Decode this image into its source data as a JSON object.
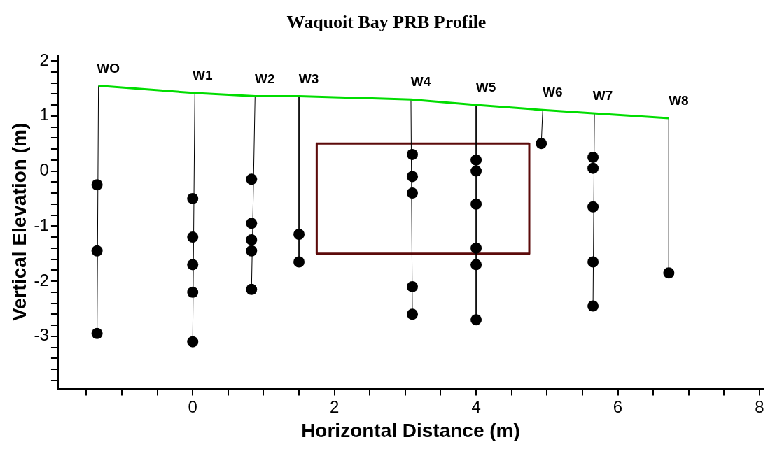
{
  "chart_data": {
    "type": "scatter",
    "title": "Waquoit Bay PRB Profile",
    "xlabel": "Horizontal Distance (m)",
    "ylabel": "Vertical Elevation (m)",
    "xlim": [
      -1.9,
      8.05
    ],
    "ylim": [
      -3.95,
      2.1
    ],
    "xticks": [
      {
        "value": -1.5,
        "label": null
      },
      {
        "value": -1,
        "label": null
      },
      {
        "value": -0.5,
        "label": null
      },
      0,
      {
        "value": 0.5,
        "label": null
      },
      {
        "value": 1,
        "label": null
      },
      {
        "value": 1.5,
        "label": null
      },
      2,
      {
        "value": 2.5,
        "label": null
      },
      {
        "value": 3,
        "label": null
      },
      {
        "value": 3.5,
        "label": null
      },
      4,
      {
        "value": 4.5,
        "label": null
      },
      {
        "value": 5,
        "label": null
      },
      {
        "value": 5.5,
        "label": null
      },
      6,
      {
        "value": 6.5,
        "label": null
      },
      {
        "value": 7,
        "label": null
      },
      {
        "value": 7.5,
        "label": null
      },
      8
    ],
    "yticks": [
      {
        "value": -3.8,
        "label": null
      },
      {
        "value": -3.6,
        "label": null
      },
      {
        "value": -3.4,
        "label": null
      },
      {
        "value": -3.2,
        "label": null
      },
      -3,
      {
        "value": -2.8,
        "label": null
      },
      {
        "value": -2.6,
        "label": null
      },
      {
        "value": -2.4,
        "label": null
      },
      {
        "value": -2.2,
        "label": null
      },
      -2,
      {
        "value": -1.8,
        "label": null
      },
      {
        "value": -1.6,
        "label": null
      },
      {
        "value": -1.4,
        "label": null
      },
      {
        "value": -1.2,
        "label": null
      },
      -1,
      {
        "value": -0.8,
        "label": null
      },
      {
        "value": -0.6,
        "label": null
      },
      {
        "value": -0.4,
        "label": null
      },
      {
        "value": -0.2,
        "label": null
      },
      0,
      {
        "value": 0.2,
        "label": null
      },
      {
        "value": 0.4,
        "label": null
      },
      {
        "value": 0.6,
        "label": null
      },
      {
        "value": 0.8,
        "label": null
      },
      1,
      {
        "value": 1.2,
        "label": null
      },
      {
        "value": 1.4,
        "label": null
      },
      {
        "value": 1.6,
        "label": null
      },
      {
        "value": 1.8,
        "label": null
      },
      2
    ],
    "grid": false,
    "legend": false,
    "series": [
      {
        "marker": "circle",
        "color": "#000000",
        "x": [
          -1.35,
          -1.35,
          -1.35,
          0,
          0,
          0,
          0,
          0,
          0.83,
          0.83,
          0.83,
          0.83,
          0.83,
          1.5,
          1.5,
          3.1,
          3.1,
          3.1,
          3.1,
          3.1,
          4,
          4,
          4,
          4,
          4,
          4,
          4.92,
          5.65,
          5.65,
          5.65,
          5.65,
          5.65,
          6.72
        ],
        "values": [
          -0.25,
          -1.45,
          -2.95,
          -0.5,
          -1.2,
          -1.7,
          -2.2,
          -3.1,
          -0.15,
          -0.95,
          -1.25,
          -1.45,
          -2.15,
          -1.15,
          -1.65,
          0.3,
          -0.1,
          -0.4,
          -2.1,
          -2.6,
          0.2,
          0,
          -0.6,
          -1.4,
          -1.7,
          -2.7,
          0.5,
          0.25,
          0.05,
          -0.65,
          -1.65,
          -2.45,
          -1.85
        ]
      },
      {
        "type": "line",
        "marker": "none",
        "color": "#00dd00",
        "x": [
          -1.33,
          0,
          0.88,
          1.5,
          3.08,
          4,
          4.94,
          5.65,
          6.72
        ],
        "values": [
          1.55,
          1.42,
          1.36,
          1.36,
          1.3,
          1.2,
          1.11,
          1.05,
          0.96
        ]
      },
      {
        "type": "line",
        "marker": "none",
        "color": "#000000",
        "x": [
          -1.33,
          -1.35
        ],
        "values": [
          1.55,
          -2.95
        ]
      },
      {
        "type": "line",
        "marker": "none",
        "color": "#000000",
        "x": [
          0.03,
          0
        ],
        "values": [
          1.42,
          -3.1
        ]
      },
      {
        "type": "line",
        "marker": "none",
        "color": "#000000",
        "x": [
          0.88,
          0.83
        ],
        "values": [
          1.36,
          -2.15
        ]
      },
      {
        "type": "line",
        "marker": "none",
        "color": "#000000",
        "x": [
          1.5,
          1.5
        ],
        "values": [
          1.36,
          -1.65
        ]
      },
      {
        "type": "line",
        "marker": "none",
        "color": "#000000",
        "x": [
          3.08,
          3.1
        ],
        "values": [
          1.3,
          -2.6
        ]
      },
      {
        "type": "line",
        "marker": "none",
        "color": "#000000",
        "x": [
          4,
          4
        ],
        "values": [
          1.2,
          -2.7
        ]
      },
      {
        "type": "line",
        "marker": "none",
        "color": "#000000",
        "x": [
          4.94,
          4.92
        ],
        "values": [
          1.11,
          0.5
        ]
      },
      {
        "type": "line",
        "marker": "none",
        "color": "#000000",
        "x": [
          5.67,
          5.65
        ],
        "values": [
          1.05,
          -2.45
        ]
      },
      {
        "type": "line",
        "marker": "none",
        "color": "#000000",
        "x": [
          6.72,
          6.72
        ],
        "values": [
          0.96,
          -1.85
        ]
      },
      {
        "type": "line",
        "marker": "none",
        "color": "#5c0a0a",
        "x": [
          1.75,
          4.75
        ],
        "values": [
          0.5,
          0.5
        ]
      },
      {
        "type": "line",
        "marker": "none",
        "color": "#5c0a0a",
        "x": [
          4.75,
          4.75
        ],
        "values": [
          0.5,
          -1.5
        ]
      },
      {
        "type": "line",
        "marker": "none",
        "color": "#5c0a0a",
        "x": [
          1.75,
          4.75
        ],
        "values": [
          -1.5,
          -1.5
        ]
      },
      {
        "type": "line",
        "marker": "none",
        "color": "#5c0a0a",
        "x": [
          1.75,
          1.75
        ],
        "values": [
          0.5,
          -1.5
        ]
      }
    ],
    "annotations": [
      {
        "text": "WO",
        "x": -1.33,
        "y": 1.55
      },
      {
        "text": "W1",
        "x": 0,
        "y": 1.42
      },
      {
        "text": "W2",
        "x": 0.88,
        "y": 1.36
      },
      {
        "text": "W3",
        "x": 1.5,
        "y": 1.36
      },
      {
        "text": "W4",
        "x": 3.08,
        "y": 1.3
      },
      {
        "text": "W5",
        "x": 4,
        "y": 1.2
      },
      {
        "text": "W6",
        "x": 4.94,
        "y": 1.11
      },
      {
        "text": "W7",
        "x": 5.65,
        "y": 1.05
      },
      {
        "text": "W8",
        "x": 6.72,
        "y": 0.96
      }
    ]
  }
}
